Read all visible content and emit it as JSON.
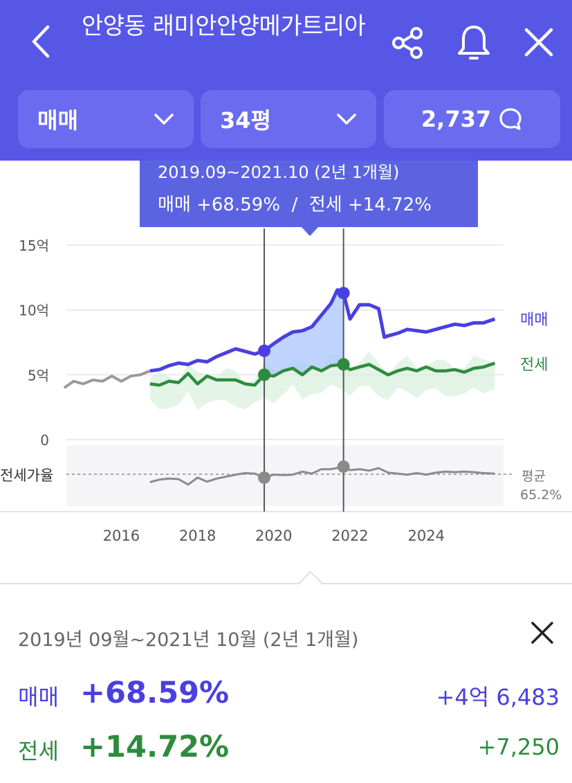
{
  "header": {
    "title": "안양동 래미안안양메가트리아",
    "trade_type": "매매",
    "size": "34평",
    "comment_count": "2,737",
    "bg_color": "#5757e6"
  },
  "icons": {
    "back": "chevron-left-icon",
    "share": "share-icon",
    "bell": "bell-icon",
    "close": "close-icon",
    "dropdown": "chevron-down-icon",
    "comment": "chat-bubble-icon"
  },
  "tooltip": {
    "range": "2019.09~2021.10 (2년 1개월)",
    "sale_label": "매매",
    "sale_change": "+68.59%",
    "separator": "/",
    "rent_label": "전세",
    "rent_change": "+14.72%"
  },
  "chart_data": {
    "type": "line",
    "ylabels": [
      "15억",
      "10억",
      "5억",
      "0"
    ],
    "y_ticks": [
      15,
      10,
      5,
      0
    ],
    "x_ticks": [
      "2016",
      "2018",
      "2020",
      "2022",
      "2024"
    ],
    "ratio_label": "전세가율",
    "ratio_avg_label": "평균",
    "ratio_avg_value": "65.2%",
    "series": [
      {
        "name": "매매",
        "color": "#4a3fe0",
        "x": [
          2016.75,
          2017.0,
          2017.25,
          2017.5,
          2017.75,
          2018.0,
          2018.25,
          2018.5,
          2018.75,
          2019.0,
          2019.25,
          2019.5,
          2019.75,
          2020.0,
          2020.25,
          2020.5,
          2020.75,
          2021.0,
          2021.25,
          2021.5,
          2021.67,
          2021.83,
          2022.0,
          2022.25,
          2022.5,
          2022.75,
          2022.9,
          2023.0,
          2023.25,
          2023.5,
          2023.75,
          2024.0,
          2024.25,
          2024.5,
          2024.75,
          2025.0,
          2025.25,
          2025.5,
          2025.8
        ],
        "y": [
          5.3,
          5.4,
          5.7,
          5.9,
          5.8,
          6.1,
          6.0,
          6.4,
          6.7,
          7.0,
          6.8,
          6.6,
          6.85,
          7.4,
          7.9,
          8.3,
          8.4,
          8.7,
          9.6,
          10.5,
          11.55,
          11.3,
          9.3,
          10.4,
          10.4,
          10.1,
          7.9,
          8.0,
          8.2,
          8.5,
          8.4,
          8.3,
          8.5,
          8.7,
          8.9,
          8.8,
          9.0,
          9.0,
          9.3
        ]
      },
      {
        "name": "전세",
        "color": "#2e8b3e",
        "x": [
          2016.75,
          2017.0,
          2017.25,
          2017.5,
          2017.75,
          2018.0,
          2018.25,
          2018.5,
          2018.75,
          2019.0,
          2019.25,
          2019.5,
          2019.75,
          2020.0,
          2020.25,
          2020.5,
          2020.75,
          2021.0,
          2021.25,
          2021.5,
          2021.83,
          2022.0,
          2022.25,
          2022.5,
          2022.75,
          2023.0,
          2023.25,
          2023.5,
          2023.75,
          2024.0,
          2024.25,
          2024.5,
          2024.75,
          2025.0,
          2025.25,
          2025.5,
          2025.8
        ],
        "y": [
          4.3,
          4.2,
          4.5,
          4.4,
          5.1,
          4.3,
          4.9,
          4.6,
          4.6,
          4.6,
          4.3,
          4.2,
          5.0,
          4.9,
          5.3,
          5.5,
          5.0,
          5.6,
          5.3,
          5.7,
          5.8,
          5.4,
          5.6,
          5.8,
          5.4,
          5.0,
          5.3,
          5.5,
          5.3,
          5.6,
          5.3,
          5.3,
          5.4,
          5.2,
          5.5,
          5.6,
          5.9
        ]
      },
      {
        "name": "매매",
        "color": "#9a9a9a",
        "x": [
          2014.5,
          2014.75,
          2015.0,
          2015.25,
          2015.5,
          2015.75,
          2016.0,
          2016.25,
          2016.5,
          2016.75
        ],
        "y": [
          4.0,
          4.5,
          4.3,
          4.6,
          4.5,
          4.9,
          4.5,
          4.9,
          5.0,
          5.3
        ]
      },
      {
        "name": "전세가율",
        "color": "#8a8a8a",
        "x": [
          2016.75,
          2017.0,
          2017.25,
          2017.5,
          2017.75,
          2018.0,
          2018.25,
          2018.5,
          2018.75,
          2019.0,
          2019.25,
          2019.5,
          2019.75,
          2020.0,
          2020.25,
          2020.5,
          2020.75,
          2021.0,
          2021.25,
          2021.5,
          2021.83,
          2022.0,
          2022.25,
          2022.5,
          2022.75,
          2023.0,
          2023.25,
          2023.5,
          2023.75,
          2024.0,
          2024.25,
          2024.5,
          2024.75,
          2025.0,
          2025.25,
          2025.5,
          2025.8
        ],
        "y": [
          81,
          76,
          74,
          75,
          86,
          72,
          80,
          74,
          70,
          66,
          63,
          64,
          72,
          66,
          67,
          66,
          60,
          64,
          55,
          55,
          50,
          57,
          55,
          58,
          53,
          62,
          64,
          66,
          63,
          66,
          62,
          60,
          61,
          60,
          61,
          63,
          64
        ]
      }
    ],
    "selection": {
      "start": 2019.75,
      "end": 2021.83
    },
    "ratio_avg": 65.2
  },
  "summary": {
    "range": "2019년 09월~2021년 10월 (2년 1개월)",
    "sale": {
      "label": "매매",
      "change": "+68.59%",
      "amount": "+4억 6,483",
      "color": "#4a3fe0"
    },
    "rent": {
      "label": "전세",
      "change": "+14.72%",
      "amount": "+7,250",
      "color": "#2e8b3e"
    }
  }
}
